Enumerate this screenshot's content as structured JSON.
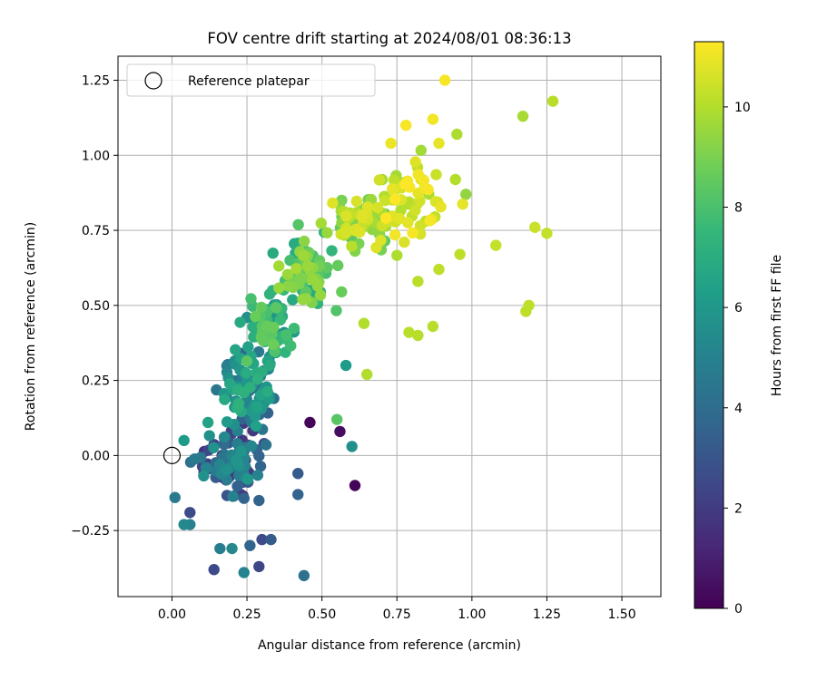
{
  "chart_data": {
    "type": "scatter",
    "title": "FOV centre drift starting at 2024/08/01 08:36:13",
    "xlabel": "Angular distance from reference (arcmin)",
    "ylabel": "Rotation from reference (arcmin)",
    "xlim": [
      -0.18,
      1.63
    ],
    "ylim": [
      -0.47,
      1.33
    ],
    "xticks": [
      0.0,
      0.25,
      0.5,
      0.75,
      1.0,
      1.25,
      1.5
    ],
    "xtick_labels": [
      "0.00",
      "0.25",
      "0.50",
      "0.75",
      "1.00",
      "1.25",
      "1.50"
    ],
    "yticks": [
      -0.25,
      0.0,
      0.25,
      0.5,
      0.75,
      1.0,
      1.25
    ],
    "ytick_labels": [
      "−0.25",
      "0.00",
      "0.25",
      "0.50",
      "0.75",
      "1.00",
      "1.25"
    ],
    "grid": true,
    "legend": {
      "position": "top-left",
      "entries": [
        {
          "label": "Reference platepar",
          "marker": "open-circle"
        }
      ]
    },
    "reference_point": {
      "x": 0.0,
      "y": 0.0
    },
    "colorbar": {
      "label": "Hours from first FF file",
      "range": [
        0,
        11.3
      ],
      "ticks": [
        0,
        2,
        4,
        6,
        8,
        10
      ],
      "colormap": "viridis",
      "stops": [
        "#440154",
        "#482878",
        "#3e4989",
        "#31688e",
        "#26828e",
        "#1f9e89",
        "#35b779",
        "#6ece58",
        "#b5de2b",
        "#fde725"
      ]
    },
    "clusters": [
      {
        "cx": 0.2,
        "cy": -0.02,
        "sx": 0.09,
        "sy": 0.1,
        "tmin": 1.3,
        "tmax": 6.2,
        "n": 110
      },
      {
        "cx": 0.25,
        "cy": 0.22,
        "sx": 0.07,
        "sy": 0.12,
        "tmin": 3.5,
        "tmax": 7.2,
        "n": 90
      },
      {
        "cx": 0.32,
        "cy": 0.42,
        "sx": 0.07,
        "sy": 0.1,
        "tmin": 5.5,
        "tmax": 8.8,
        "n": 80
      },
      {
        "cx": 0.45,
        "cy": 0.62,
        "sx": 0.08,
        "sy": 0.1,
        "tmin": 6.8,
        "tmax": 9.8,
        "n": 70
      },
      {
        "cx": 0.63,
        "cy": 0.78,
        "sx": 0.1,
        "sy": 0.08,
        "tmin": 8.3,
        "tmax": 10.8,
        "n": 70
      },
      {
        "cx": 0.8,
        "cy": 0.85,
        "sx": 0.12,
        "sy": 0.15,
        "tmin": 9.6,
        "tmax": 11.3,
        "n": 60
      }
    ],
    "points": [
      {
        "x": 0.91,
        "y": 1.25,
        "t": 11.2
      },
      {
        "x": 1.27,
        "y": 1.18,
        "t": 10.1
      },
      {
        "x": 1.17,
        "y": 1.13,
        "t": 9.8
      },
      {
        "x": 0.78,
        "y": 1.1,
        "t": 11.2
      },
      {
        "x": 0.87,
        "y": 1.12,
        "t": 11.1
      },
      {
        "x": 0.95,
        "y": 1.07,
        "t": 9.9
      },
      {
        "x": 0.73,
        "y": 1.04,
        "t": 11.0
      },
      {
        "x": 0.89,
        "y": 1.04,
        "t": 10.9
      },
      {
        "x": 1.21,
        "y": 0.76,
        "t": 10.4
      },
      {
        "x": 1.25,
        "y": 0.74,
        "t": 10.3
      },
      {
        "x": 1.08,
        "y": 0.7,
        "t": 10.3
      },
      {
        "x": 1.18,
        "y": 0.48,
        "t": 10.2
      },
      {
        "x": 1.19,
        "y": 0.5,
        "t": 10.2
      },
      {
        "x": 0.98,
        "y": 0.87,
        "t": 9.4
      },
      {
        "x": 0.96,
        "y": 0.67,
        "t": 10.2
      },
      {
        "x": 0.89,
        "y": 0.62,
        "t": 10.2
      },
      {
        "x": 0.87,
        "y": 0.43,
        "t": 10.1
      },
      {
        "x": 0.79,
        "y": 0.41,
        "t": 10.1
      },
      {
        "x": 0.82,
        "y": 0.4,
        "t": 10.1
      },
      {
        "x": 0.82,
        "y": 0.58,
        "t": 10.1
      },
      {
        "x": 0.65,
        "y": 0.27,
        "t": 10.0
      },
      {
        "x": 0.64,
        "y": 0.44,
        "t": 10.0
      },
      {
        "x": 0.58,
        "y": 0.3,
        "t": 6.2
      },
      {
        "x": 0.46,
        "y": 0.11,
        "t": 0.1
      },
      {
        "x": 0.56,
        "y": 0.08,
        "t": 0.4
      },
      {
        "x": 0.61,
        "y": -0.1,
        "t": 0.1
      },
      {
        "x": 0.55,
        "y": 0.12,
        "t": 8.3
      },
      {
        "x": 0.6,
        "y": 0.03,
        "t": 5.6
      },
      {
        "x": 0.44,
        "y": -0.4,
        "t": 4.2
      },
      {
        "x": 0.42,
        "y": -0.13,
        "t": 3.6
      },
      {
        "x": 0.42,
        "y": -0.06,
        "t": 3.3
      },
      {
        "x": 0.29,
        "y": -0.37,
        "t": 2.4
      },
      {
        "x": 0.33,
        "y": -0.28,
        "t": 3.3
      },
      {
        "x": 0.26,
        "y": -0.3,
        "t": 3.6
      },
      {
        "x": 0.24,
        "y": -0.39,
        "t": 5.0
      },
      {
        "x": 0.14,
        "y": -0.38,
        "t": 2.5
      },
      {
        "x": 0.16,
        "y": -0.31,
        "t": 4.8
      },
      {
        "x": 0.2,
        "y": -0.31,
        "t": 5.3
      },
      {
        "x": 0.3,
        "y": -0.28,
        "t": 2.6
      },
      {
        "x": 0.23,
        "y": -0.13,
        "t": 1.8
      },
      {
        "x": 0.29,
        "y": -0.15,
        "t": 3.6
      },
      {
        "x": 0.06,
        "y": -0.23,
        "t": 5.0
      },
      {
        "x": 0.04,
        "y": -0.23,
        "t": 5.3
      },
      {
        "x": 0.06,
        "y": -0.19,
        "t": 2.6
      },
      {
        "x": 0.01,
        "y": -0.14,
        "t": 4.6
      },
      {
        "x": 0.04,
        "y": 0.05,
        "t": 6.2
      },
      {
        "x": 0.12,
        "y": 0.11,
        "t": 6.5
      }
    ]
  }
}
